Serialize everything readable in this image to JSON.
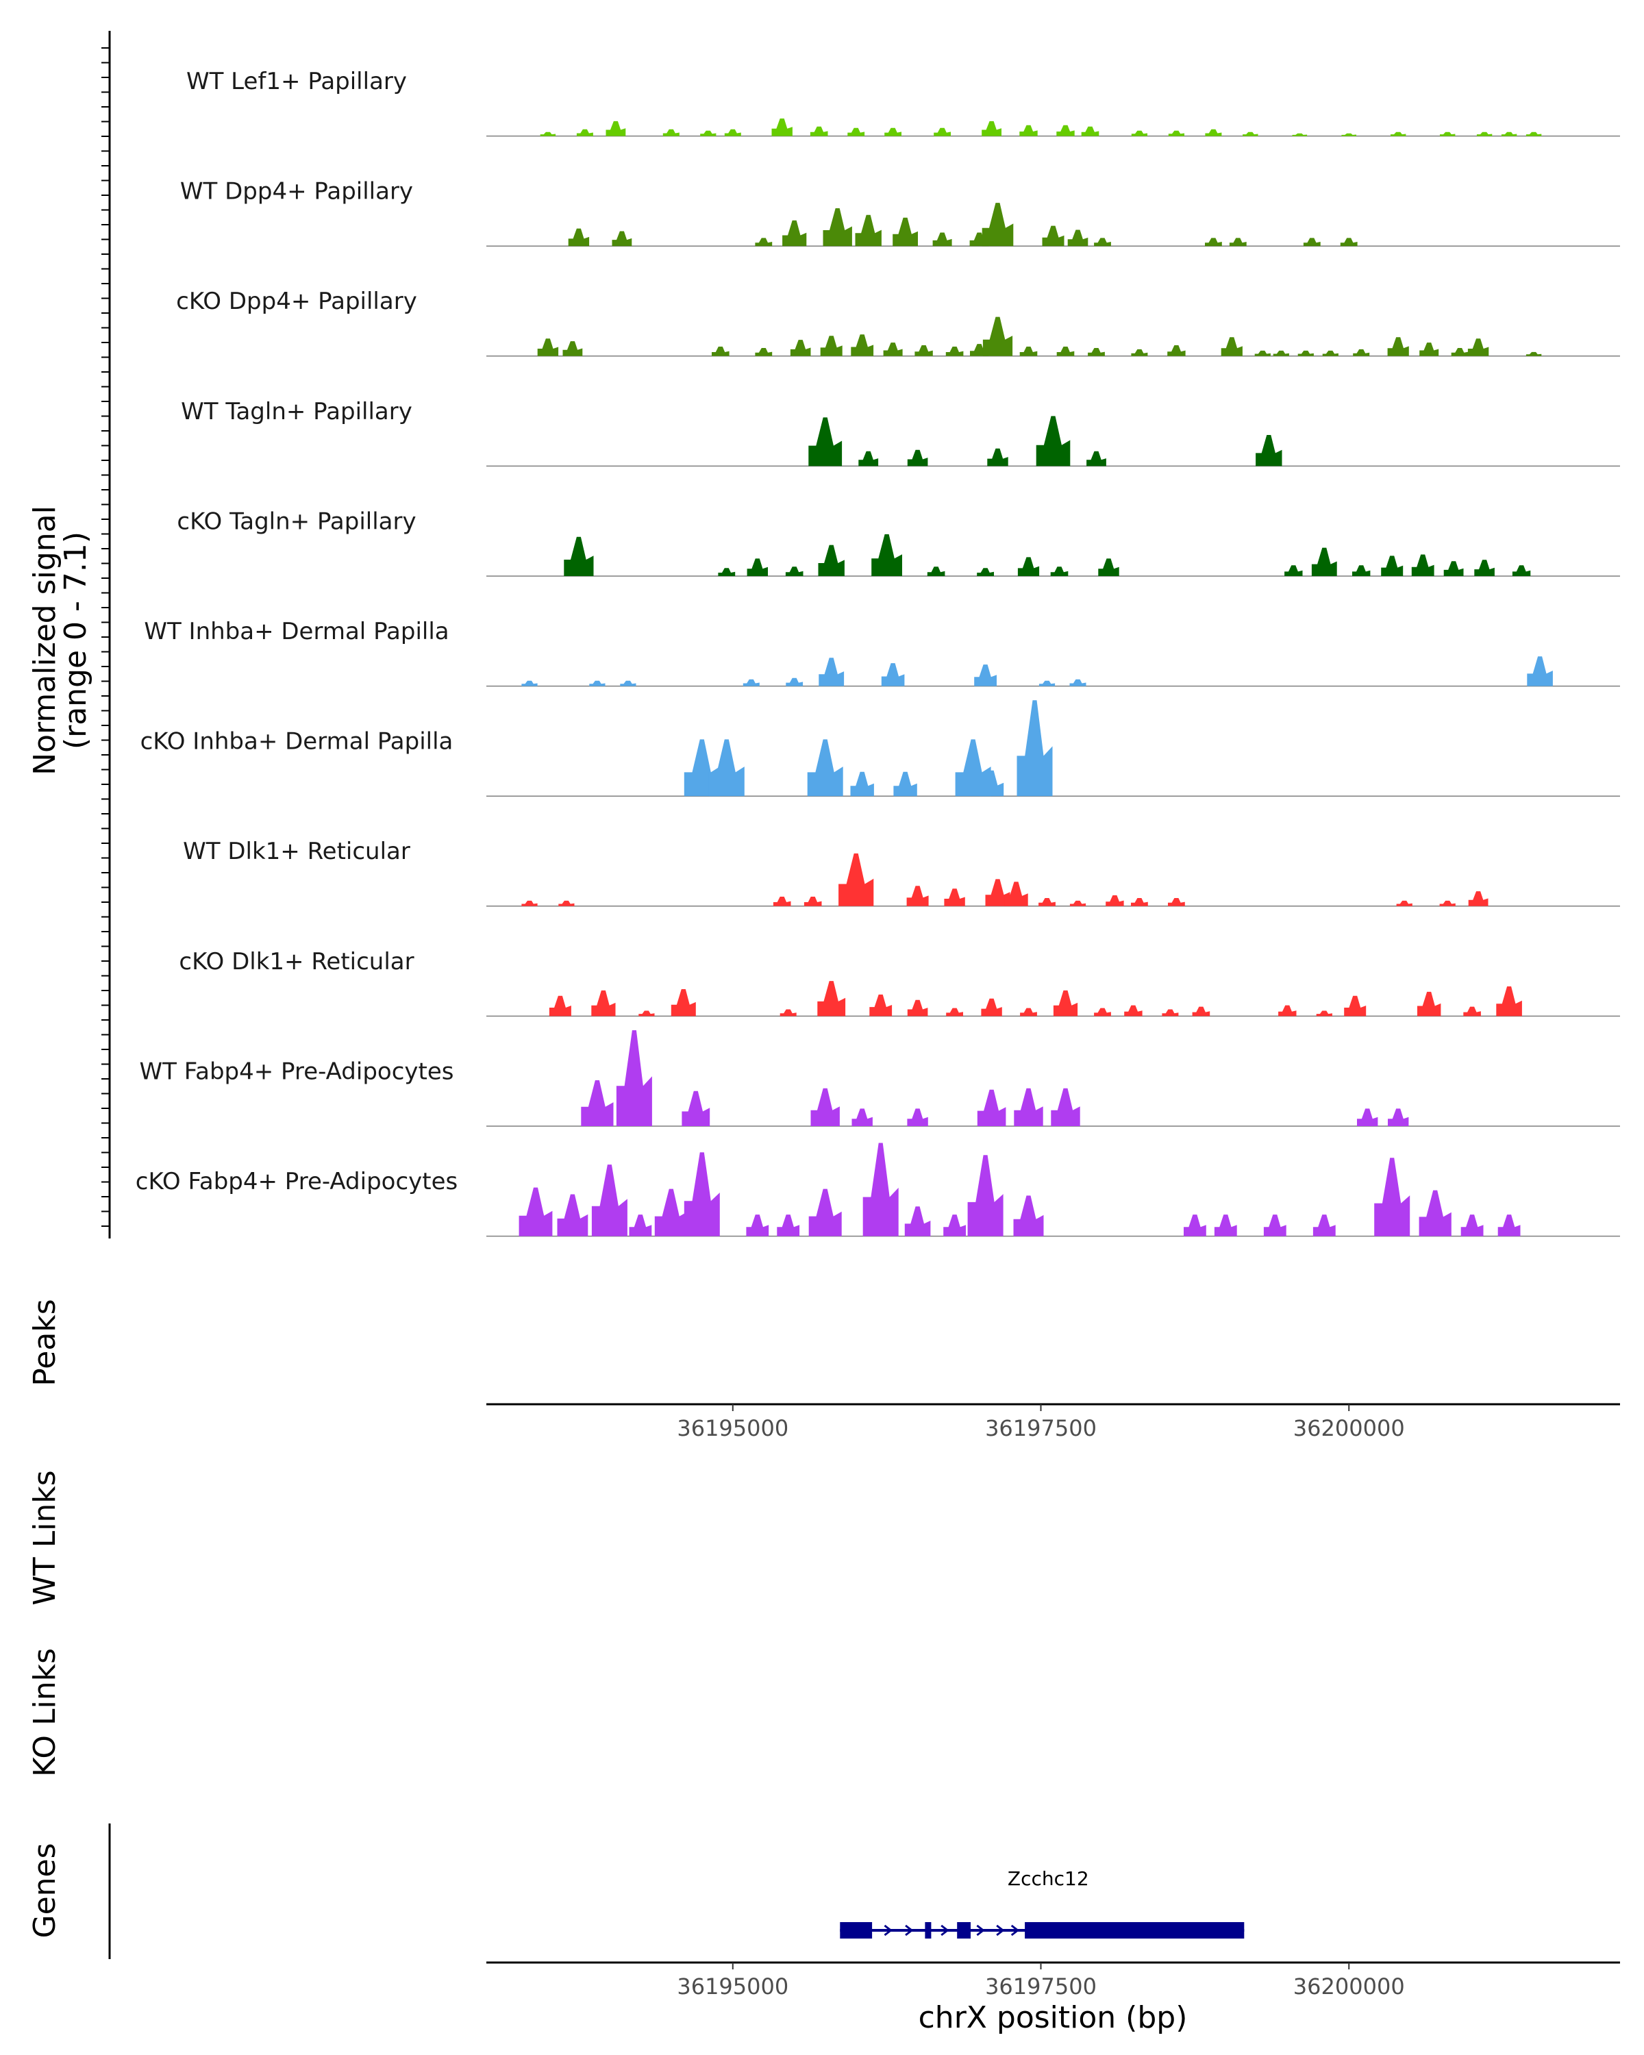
{
  "chart_data": {
    "type": "area",
    "title": "",
    "xlabel": "chrX position (bp)",
    "ylabel": "Normalized signal\n(range 0 - 7.1)",
    "ylabel_lines": [
      "Normalized signal",
      "(range 0 - 7.1)"
    ],
    "y_range": [
      0,
      7.1
    ],
    "x_range": [
      36193000,
      36202200
    ],
    "x_ticks": [
      36195000,
      36197500,
      36200000
    ],
    "x_tick_labels": [
      "36195000",
      "36197500",
      "36200000"
    ],
    "panel_labels": {
      "peaks": "Peaks",
      "wt_links": "WT Links",
      "ko_links": "KO Links",
      "genes": "Genes"
    },
    "series": [
      {
        "name": "WT Lef1+ Papillary",
        "color": "#66cc00",
        "peaks": [
          [
            36193500,
            0.3
          ],
          [
            36193800,
            0.5
          ],
          [
            36194050,
            1.1
          ],
          [
            36194500,
            0.5
          ],
          [
            36194800,
            0.4
          ],
          [
            36195000,
            0.5
          ],
          [
            36195400,
            1.3
          ],
          [
            36195700,
            0.7
          ],
          [
            36196000,
            0.6
          ],
          [
            36196300,
            0.6
          ],
          [
            36196700,
            0.6
          ],
          [
            36197100,
            1.1
          ],
          [
            36197400,
            0.8
          ],
          [
            36197700,
            0.8
          ],
          [
            36197900,
            0.7
          ],
          [
            36198300,
            0.4
          ],
          [
            36198600,
            0.4
          ],
          [
            36198900,
            0.5
          ],
          [
            36199200,
            0.3
          ],
          [
            36199600,
            0.2
          ],
          [
            36200000,
            0.2
          ],
          [
            36200400,
            0.3
          ],
          [
            36200800,
            0.3
          ],
          [
            36201100,
            0.3
          ],
          [
            36201300,
            0.3
          ],
          [
            36201500,
            0.3
          ]
        ]
      },
      {
        "name": "WT Dpp4+ Papillary",
        "color": "#4b8a08",
        "peaks": [
          [
            36193750,
            1.3
          ],
          [
            36194100,
            1.1
          ],
          [
            36195250,
            0.6
          ],
          [
            36195500,
            1.9
          ],
          [
            36195850,
            2.8
          ],
          [
            36196100,
            2.3
          ],
          [
            36196400,
            2.1
          ],
          [
            36196700,
            1.0
          ],
          [
            36197000,
            1.0
          ],
          [
            36197150,
            3.2
          ],
          [
            36197600,
            1.5
          ],
          [
            36197800,
            1.2
          ],
          [
            36198000,
            0.6
          ],
          [
            36198900,
            0.6
          ],
          [
            36199100,
            0.6
          ],
          [
            36199700,
            0.6
          ],
          [
            36200000,
            0.6
          ]
        ]
      },
      {
        "name": "cKO Dpp4+ Papillary",
        "color": "#4b8a08",
        "peaks": [
          [
            36193500,
            1.3
          ],
          [
            36193700,
            1.1
          ],
          [
            36194900,
            0.7
          ],
          [
            36195250,
            0.6
          ],
          [
            36195550,
            1.2
          ],
          [
            36195800,
            1.5
          ],
          [
            36196050,
            1.6
          ],
          [
            36196300,
            1.0
          ],
          [
            36196550,
            0.8
          ],
          [
            36196800,
            0.7
          ],
          [
            36197000,
            0.9
          ],
          [
            36197150,
            2.9
          ],
          [
            36197400,
            0.7
          ],
          [
            36197700,
            0.7
          ],
          [
            36197950,
            0.6
          ],
          [
            36198300,
            0.5
          ],
          [
            36198600,
            0.8
          ],
          [
            36199050,
            1.4
          ],
          [
            36199300,
            0.4
          ],
          [
            36199450,
            0.4
          ],
          [
            36199650,
            0.4
          ],
          [
            36199850,
            0.4
          ],
          [
            36200100,
            0.5
          ],
          [
            36200400,
            1.4
          ],
          [
            36200650,
            1.0
          ],
          [
            36200900,
            0.6
          ],
          [
            36201050,
            1.3
          ],
          [
            36201500,
            0.3
          ]
        ]
      },
      {
        "name": "WT Tagln+ Papillary",
        "color": "#006400",
        "peaks": [
          [
            36195750,
            3.6
          ],
          [
            36196100,
            1.1
          ],
          [
            36196500,
            1.2
          ],
          [
            36197150,
            1.3
          ],
          [
            36197600,
            3.7
          ],
          [
            36197950,
            1.1
          ],
          [
            36199350,
            2.3
          ]
        ]
      },
      {
        "name": "cKO Tagln+ Papillary",
        "color": "#006400",
        "peaks": [
          [
            36193750,
            2.9
          ],
          [
            36194950,
            0.6
          ],
          [
            36195200,
            1.3
          ],
          [
            36195500,
            0.7
          ],
          [
            36195800,
            2.3
          ],
          [
            36196250,
            3.1
          ],
          [
            36196650,
            0.7
          ],
          [
            36197050,
            0.6
          ],
          [
            36197400,
            1.4
          ],
          [
            36197650,
            0.7
          ],
          [
            36198050,
            1.3
          ],
          [
            36199550,
            0.8
          ],
          [
            36199800,
            2.1
          ],
          [
            36200100,
            0.8
          ],
          [
            36200350,
            1.5
          ],
          [
            36200600,
            1.6
          ],
          [
            36200850,
            1.1
          ],
          [
            36201100,
            1.2
          ],
          [
            36201400,
            0.8
          ]
        ]
      },
      {
        "name": "WT Inhba+ Dermal Papilla",
        "color": "#55a7e8",
        "peaks": [
          [
            36193350,
            0.4
          ],
          [
            36193900,
            0.4
          ],
          [
            36194150,
            0.4
          ],
          [
            36195150,
            0.5
          ],
          [
            36195500,
            0.6
          ],
          [
            36195800,
            2.1
          ],
          [
            36196300,
            1.7
          ],
          [
            36197050,
            1.6
          ],
          [
            36197550,
            0.4
          ],
          [
            36197800,
            0.5
          ],
          [
            36201550,
            2.2
          ]
        ]
      },
      {
        "name": "cKO Inhba+ Dermal Papilla",
        "color": "#55a7e8",
        "peaks": [
          [
            36194750,
            4.2
          ],
          [
            36194950,
            4.2
          ],
          [
            36195750,
            4.2
          ],
          [
            36196050,
            1.8
          ],
          [
            36196400,
            1.8
          ],
          [
            36196950,
            4.2
          ],
          [
            36197100,
            1.9
          ],
          [
            36197450,
            7.1
          ]
        ]
      },
      {
        "name": "WT Dlk1+ Reticular",
        "color": "#ff3333",
        "peaks": [
          [
            36193350,
            0.4
          ],
          [
            36193650,
            0.4
          ],
          [
            36195400,
            0.7
          ],
          [
            36195650,
            0.7
          ],
          [
            36196000,
            3.9
          ],
          [
            36196500,
            1.5
          ],
          [
            36196800,
            1.3
          ],
          [
            36197150,
            2.0
          ],
          [
            36197300,
            1.8
          ],
          [
            36197550,
            0.6
          ],
          [
            36197800,
            0.4
          ],
          [
            36198100,
            0.8
          ],
          [
            36198300,
            0.6
          ],
          [
            36198600,
            0.6
          ],
          [
            36200450,
            0.4
          ],
          [
            36200800,
            0.4
          ],
          [
            36201050,
            1.1
          ]
        ]
      },
      {
        "name": "cKO Dlk1+ Reticular",
        "color": "#ff3333",
        "peaks": [
          [
            36193600,
            1.5
          ],
          [
            36193950,
            1.9
          ],
          [
            36194300,
            0.4
          ],
          [
            36194600,
            2.0
          ],
          [
            36195450,
            0.5
          ],
          [
            36195800,
            2.6
          ],
          [
            36196200,
            1.6
          ],
          [
            36196500,
            1.2
          ],
          [
            36196800,
            0.6
          ],
          [
            36197100,
            1.3
          ],
          [
            36197400,
            0.6
          ],
          [
            36197700,
            1.9
          ],
          [
            36198000,
            0.6
          ],
          [
            36198250,
            0.8
          ],
          [
            36198550,
            0.5
          ],
          [
            36198800,
            0.7
          ],
          [
            36199500,
            0.8
          ],
          [
            36199800,
            0.4
          ],
          [
            36200050,
            1.5
          ],
          [
            36200650,
            1.8
          ],
          [
            36201000,
            0.7
          ],
          [
            36201300,
            2.2
          ]
        ]
      },
      {
        "name": "WT Fabp4+ Pre-Adipocytes",
        "color": "#b03df0",
        "peaks": [
          [
            36193900,
            3.4
          ],
          [
            36194200,
            7.1
          ],
          [
            36194700,
            2.6
          ],
          [
            36195750,
            2.8
          ],
          [
            36196050,
            1.3
          ],
          [
            36196500,
            1.3
          ],
          [
            36197100,
            2.7
          ],
          [
            36197400,
            2.8
          ],
          [
            36197700,
            2.8
          ],
          [
            36200150,
            1.3
          ],
          [
            36200400,
            1.3
          ]
        ]
      },
      {
        "name": "cKO Fabp4+ Pre-Adipocytes",
        "color": "#b03df0",
        "peaks": [
          [
            36193400,
            3.6
          ],
          [
            36193700,
            3.1
          ],
          [
            36194000,
            5.3
          ],
          [
            36194250,
            1.6
          ],
          [
            36194500,
            3.5
          ],
          [
            36194750,
            6.2
          ],
          [
            36195200,
            1.6
          ],
          [
            36195450,
            1.6
          ],
          [
            36195750,
            3.5
          ],
          [
            36196200,
            6.9
          ],
          [
            36196500,
            2.2
          ],
          [
            36196800,
            1.6
          ],
          [
            36197050,
            6.0
          ],
          [
            36197400,
            3.0
          ],
          [
            36198750,
            1.6
          ],
          [
            36199000,
            1.6
          ],
          [
            36199400,
            1.6
          ],
          [
            36199800,
            1.6
          ],
          [
            36200350,
            5.8
          ],
          [
            36200700,
            3.4
          ],
          [
            36201000,
            1.6
          ],
          [
            36201300,
            1.6
          ]
        ]
      }
    ],
    "gene": {
      "name": "Zcchc12",
      "strand": "+",
      "start": 36195870,
      "end": 36199150,
      "exons": [
        [
          36195870,
          36196130
        ],
        [
          36196560,
          36196610
        ],
        [
          36196820,
          36196930
        ],
        [
          36197370,
          36199150
        ]
      ],
      "arrows": [
        36195920,
        36196260,
        36196430,
        36196720,
        36197010,
        36197170,
        36197290
      ]
    }
  }
}
